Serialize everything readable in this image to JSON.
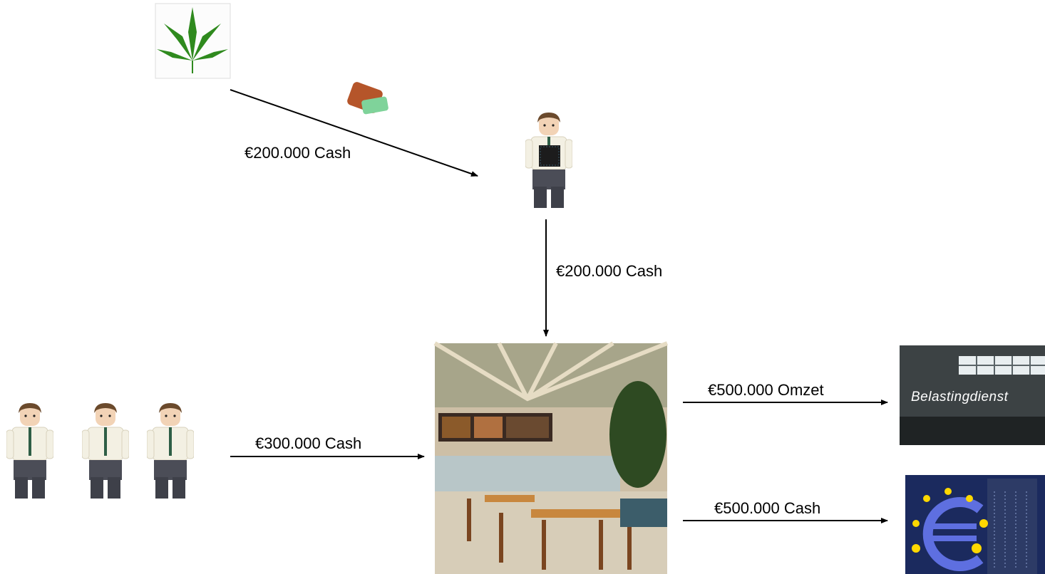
{
  "edges": [
    {
      "label": "€200.000 Cash"
    },
    {
      "label": "€200.000 Cash"
    },
    {
      "label": "€300.000 Cash"
    },
    {
      "label": "€500.000 Omzet"
    },
    {
      "label": "€500.000 Cash"
    }
  ],
  "nodes": {
    "tax_office": {
      "label": "Belastingdienst"
    }
  }
}
